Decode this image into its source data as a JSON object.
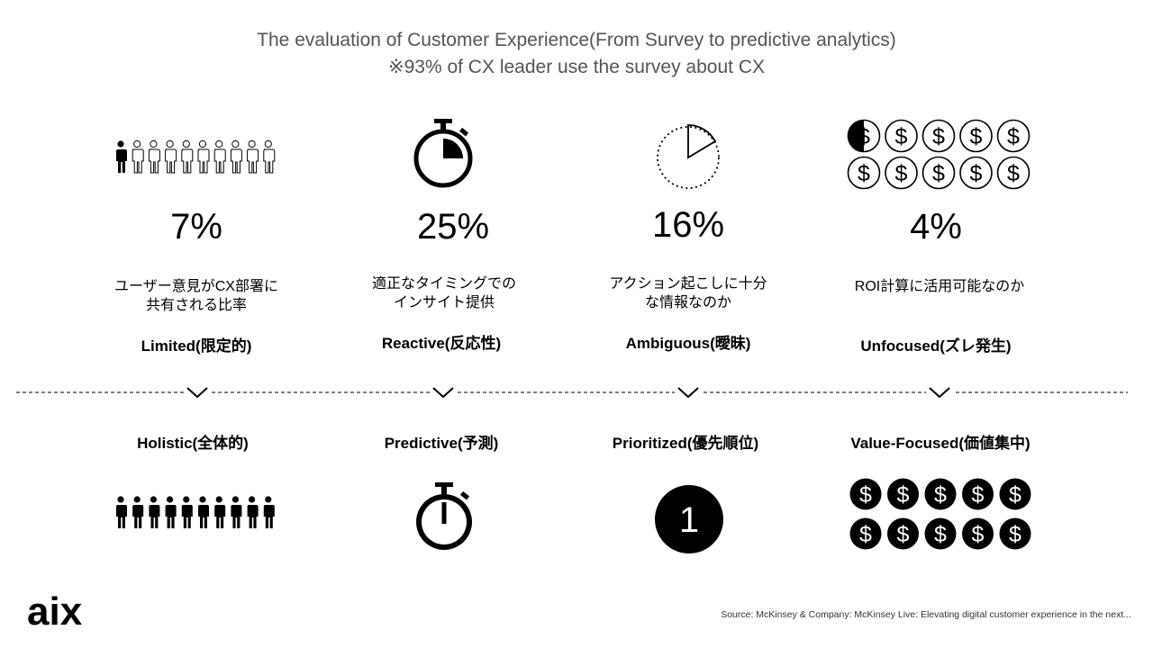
{
  "title": {
    "line1": "The evaluation of Customer Experience(From Survey to predictive analytics)",
    "line2": "※93% of CX leader use the survey about CX"
  },
  "top": [
    {
      "percent": "7%",
      "desc1": "ユーザー意見がCX部署に",
      "desc2": "共有される比率",
      "label": "Limited(限定的)",
      "icon": "people-one-filled-icon",
      "share": 0.07
    },
    {
      "percent": "25%",
      "desc1": "適正なタイミングでの",
      "desc2": "インサイト提供",
      "label": "Reactive(反応性)",
      "icon": "stopwatch-quarter-icon",
      "share": 0.25
    },
    {
      "percent": "16%",
      "desc1": "アクション起こしに十分",
      "desc2": "な情報なのか",
      "label": "Ambiguous(曖昧)",
      "icon": "dotted-circle-slice-icon",
      "share": 0.16
    },
    {
      "percent": "4%",
      "desc1": "ROI計算に活用可能なのか",
      "desc2": "",
      "label": "Unfocused(ズレ発生)",
      "icon": "dollar-coins-half-filled-icon",
      "share": 0.04
    }
  ],
  "bottom": [
    {
      "label": "Holistic(全体的)",
      "icon": "people-all-filled-icon"
    },
    {
      "label": "Predictive(予測)",
      "icon": "stopwatch-filled-icon"
    },
    {
      "label": "Prioritized(優先順位)",
      "icon": "number-one-circle-icon",
      "number": "1"
    },
    {
      "label": "Value-Focused(価値集中)",
      "icon": "dollar-coins-filled-icon"
    }
  ],
  "logo": "aix",
  "source": "Source:  McKinsey & Company: McKinsey Live: Elevating digital customer experience  in the next..."
}
